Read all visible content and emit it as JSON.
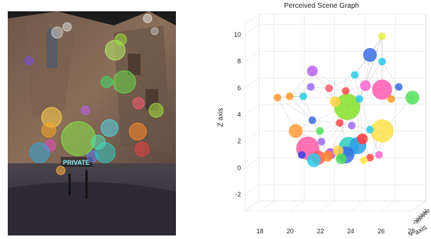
{
  "photo": {
    "sign_text": "PRIVATE",
    "overlay_dots": [
      {
        "c": "#c9c9c9"
      },
      {
        "c": "#d9d9d9"
      },
      {
        "c": "#e0e0e0"
      },
      {
        "c": "#bdbdbd"
      },
      {
        "c": "#b7f06a"
      },
      {
        "c": "#9be23a"
      },
      {
        "c": "#6ad84a"
      },
      {
        "c": "#3fd86a"
      },
      {
        "c": "#ffd24a"
      },
      {
        "c": "#f6a623"
      },
      {
        "c": "#ff5a6e"
      },
      {
        "c": "#b95ff0"
      },
      {
        "c": "#5a7cf0"
      },
      {
        "c": "#2ec9c2"
      },
      {
        "c": "#54d6e8"
      },
      {
        "c": "#86ea4a"
      },
      {
        "c": "#e74cc0"
      },
      {
        "c": "#ff8a2a"
      },
      {
        "c": "#50e0b0"
      },
      {
        "c": "#a2e03a"
      },
      {
        "c": "#2fa8d8"
      },
      {
        "c": "#ffb13b"
      },
      {
        "c": "#e84040"
      },
      {
        "c": "#7a52e0"
      }
    ]
  },
  "chart_data": {
    "type": "scatter",
    "subtype": "3d-scatter-graph",
    "title": "Perceived Scene Graph",
    "xlabel": "",
    "ylabel": "Y axis",
    "zlabel": "Z axis",
    "xlim": [
      17.5,
      28.5
    ],
    "zlim": [
      -3,
      11
    ],
    "x_ticks": [
      "18",
      "20",
      "22",
      "24",
      "26",
      "28"
    ],
    "z_ticks": [
      "-2",
      "0",
      "2",
      "4",
      "6",
      "8",
      "10"
    ],
    "y_ticks": [
      "28",
      "30",
      "32",
      "34",
      "36",
      "38"
    ],
    "grid": true,
    "points": [
      {
        "x": 25.6,
        "z": 9.5,
        "s": 2,
        "c": "#e6f04a"
      },
      {
        "x": 24.8,
        "z": 8.1,
        "s": 4,
        "c": "#3b6fe0"
      },
      {
        "x": 25.6,
        "z": 7.6,
        "s": 2,
        "c": "#2ec9e8"
      },
      {
        "x": 21.0,
        "z": 6.9,
        "s": 3,
        "c": "#b95ff0"
      },
      {
        "x": 23.8,
        "z": 6.6,
        "s": 2,
        "c": "#2ec9e8"
      },
      {
        "x": 20.9,
        "z": 5.7,
        "s": 2,
        "c": "#9b6ef0"
      },
      {
        "x": 24.5,
        "z": 5.8,
        "s": 3,
        "c": "#ff66cc"
      },
      {
        "x": 25.6,
        "z": 5.5,
        "s": 6,
        "c": "#ff5ab4"
      },
      {
        "x": 23.2,
        "z": 5.4,
        "s": 2,
        "c": "#ff4a4a"
      },
      {
        "x": 27.6,
        "z": 4.9,
        "s": 4,
        "c": "#52e05a"
      },
      {
        "x": 26.7,
        "z": 5.7,
        "s": 2,
        "c": "#3b6fe0"
      },
      {
        "x": 18.7,
        "z": 4.9,
        "s": 2,
        "c": "#ff9a2a"
      },
      {
        "x": 19.5,
        "z": 5.0,
        "s": 2,
        "c": "#ff9a2a"
      },
      {
        "x": 20.4,
        "z": 5.0,
        "s": 2,
        "c": "#2ec9e8"
      },
      {
        "x": 22.5,
        "z": 4.6,
        "s": 3,
        "c": "#ffd24a"
      },
      {
        "x": 23.3,
        "z": 4.2,
        "s": 8,
        "c": "#86e02a"
      },
      {
        "x": 24.1,
        "z": 4.8,
        "s": 2,
        "c": "#2ec9e8"
      },
      {
        "x": 25.6,
        "z": 2.4,
        "s": 7,
        "c": "#ffe34a"
      },
      {
        "x": 19.9,
        "z": 2.4,
        "s": 4,
        "c": "#ff9a3a"
      },
      {
        "x": 21.0,
        "z": 3.2,
        "s": 2,
        "c": "#3b6fe0"
      },
      {
        "x": 22.8,
        "z": 3.0,
        "s": 2,
        "c": "#ff4a4a"
      },
      {
        "x": 24.3,
        "z": 1.8,
        "s": 3,
        "c": "#ff3a3a"
      },
      {
        "x": 24.8,
        "z": 2.5,
        "s": 2,
        "c": "#2ec9e8"
      },
      {
        "x": 20.7,
        "z": 1.1,
        "s": 7,
        "c": "#ff5aa8"
      },
      {
        "x": 21.6,
        "z": 1.6,
        "s": 2,
        "c": "#9b6ef0"
      },
      {
        "x": 22.2,
        "z": 0.7,
        "s": 3,
        "c": "#b44ae0"
      },
      {
        "x": 23.4,
        "z": 1.2,
        "s": 6,
        "c": "#2ec9c2"
      },
      {
        "x": 24.0,
        "z": 1.3,
        "s": 5,
        "c": "#2f9fe8"
      },
      {
        "x": 23.2,
        "z": 0.6,
        "s": 5,
        "c": "#3b6fe0"
      },
      {
        "x": 22.7,
        "z": 0.9,
        "s": 3,
        "c": "#ffd24a"
      },
      {
        "x": 22.0,
        "z": 0.5,
        "s": 3,
        "c": "#ff8a2a"
      },
      {
        "x": 21.4,
        "z": 0.4,
        "s": 4,
        "c": "#ff5a5a"
      },
      {
        "x": 20.3,
        "z": 0.6,
        "s": 2,
        "c": "#3b3fe0"
      },
      {
        "x": 21.1,
        "z": 0.2,
        "s": 4,
        "c": "#2ec9e8"
      },
      {
        "x": 22.9,
        "z": 0.3,
        "s": 3,
        "c": "#52e05a"
      },
      {
        "x": 24.8,
        "z": 0.4,
        "s": 2,
        "c": "#ff4a4a"
      },
      {
        "x": 25.4,
        "z": 0.6,
        "s": 2,
        "c": "#ff66cc"
      },
      {
        "x": 24.4,
        "z": 0.2,
        "s": 2,
        "c": "#ffe34a"
      },
      {
        "x": 21.5,
        "z": 2.4,
        "s": 2,
        "c": "#52e05a"
      },
      {
        "x": 23.6,
        "z": 2.8,
        "s": 2,
        "c": "#9b6ef0"
      },
      {
        "x": 26.2,
        "z": 4.8,
        "s": 2,
        "c": "#ff9a2a"
      },
      {
        "x": 22.1,
        "z": 5.6,
        "s": 2,
        "c": "#ff5a6e"
      }
    ]
  }
}
